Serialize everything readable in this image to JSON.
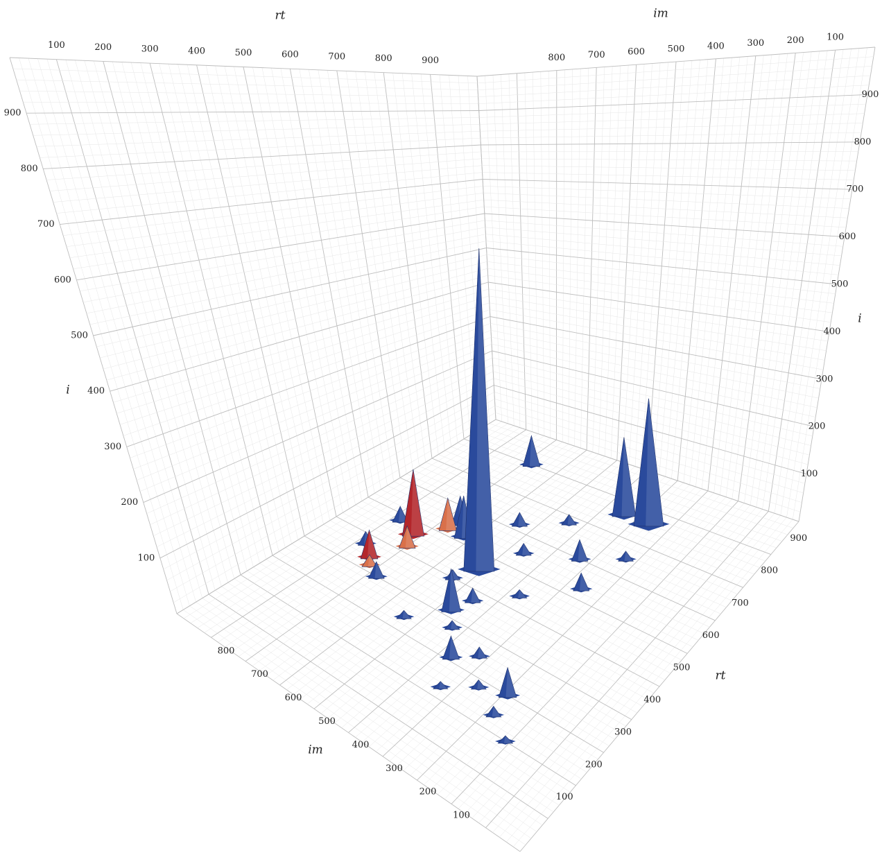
{
  "chart_data": {
    "type": "surface3d",
    "axes": {
      "rt": {
        "label": "rt",
        "ticks": [
          "100",
          "200",
          "300",
          "400",
          "500",
          "600",
          "700",
          "800",
          "900"
        ]
      },
      "im": {
        "label": "im",
        "ticks": [
          "100",
          "200",
          "300",
          "400",
          "500",
          "600",
          "700",
          "800"
        ]
      },
      "i": {
        "label": "i",
        "ticks": [
          "100",
          "200",
          "300",
          "400",
          "500",
          "600",
          "700",
          "800",
          "900"
        ]
      }
    },
    "colors": {
      "primary": "#2a4a9c",
      "secondary": "#b3262b",
      "accent": "#d9704a",
      "grid": "#c8c8c8"
    },
    "peaks": [
      {
        "rt": 555,
        "im": 610,
        "i": 980,
        "color": "primary"
      },
      {
        "rt": 860,
        "im": 360,
        "i": 380,
        "color": "primary"
      },
      {
        "rt": 860,
        "im": 440,
        "i": 230,
        "color": "primary"
      },
      {
        "rt": 900,
        "im": 780,
        "i": 80,
        "color": "primary"
      },
      {
        "rt": 650,
        "im": 760,
        "i": 80,
        "color": "primary"
      },
      {
        "rt": 620,
        "im": 720,
        "i": 120,
        "color": "primary"
      },
      {
        "rt": 700,
        "im": 430,
        "i": 60,
        "color": "primary"
      },
      {
        "rt": 580,
        "im": 880,
        "i": 40,
        "color": "primary"
      },
      {
        "rt": 630,
        "im": 360,
        "i": 50,
        "color": "primary"
      },
      {
        "rt": 560,
        "im": 820,
        "i": 190,
        "color": "secondary"
      },
      {
        "rt": 520,
        "im": 800,
        "i": 60,
        "color": "accent"
      },
      {
        "rt": 440,
        "im": 840,
        "i": 80,
        "color": "secondary"
      },
      {
        "rt": 420,
        "im": 820,
        "i": 30,
        "color": "accent"
      },
      {
        "rt": 620,
        "im": 770,
        "i": 90,
        "color": "accent"
      },
      {
        "rt": 420,
        "im": 570,
        "i": 130,
        "color": "primary"
      },
      {
        "rt": 300,
        "im": 290,
        "i": 95,
        "color": "primary"
      },
      {
        "rt": 310,
        "im": 470,
        "i": 70,
        "color": "primary"
      },
      {
        "rt": 400,
        "im": 780,
        "i": 45,
        "color": "primary"
      },
      {
        "rt": 470,
        "im": 880,
        "i": 35,
        "color": "primary"
      },
      {
        "rt": 240,
        "im": 280,
        "i": 30,
        "color": "primary"
      },
      {
        "rt": 200,
        "im": 210,
        "i": 20,
        "color": "primary"
      },
      {
        "rt": 350,
        "im": 420,
        "i": 30,
        "color": "primary"
      },
      {
        "rt": 280,
        "im": 360,
        "i": 25,
        "color": "primary"
      },
      {
        "rt": 500,
        "im": 640,
        "i": 25,
        "color": "primary"
      },
      {
        "rt": 650,
        "im": 560,
        "i": 30,
        "color": "primary"
      },
      {
        "rt": 470,
        "im": 550,
        "i": 40,
        "color": "primary"
      },
      {
        "rt": 600,
        "im": 650,
        "i": 20,
        "color": "primary"
      },
      {
        "rt": 380,
        "im": 530,
        "i": 22,
        "color": "primary"
      },
      {
        "rt": 750,
        "im": 330,
        "i": 25,
        "color": "primary"
      },
      {
        "rt": 540,
        "im": 470,
        "i": 20,
        "color": "primary"
      },
      {
        "rt": 230,
        "im": 430,
        "i": 18,
        "color": "primary"
      },
      {
        "rt": 340,
        "im": 640,
        "i": 20,
        "color": "primary"
      },
      {
        "rt": 720,
        "im": 640,
        "i": 35,
        "color": "primary"
      },
      {
        "rt": 780,
        "im": 540,
        "i": 25,
        "color": "primary"
      }
    ]
  }
}
